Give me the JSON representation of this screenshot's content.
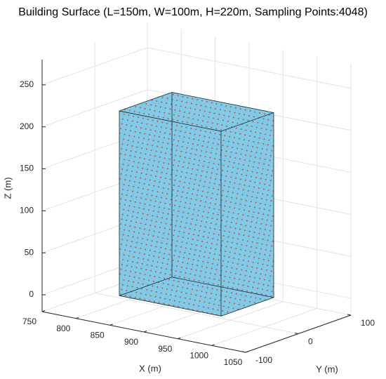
{
  "chart_data": {
    "type": "box3d",
    "title": "Building Surface (L=150m, W=100m, H=220m, Sampling Points:4048)",
    "xlabel": "X (m)",
    "ylabel": "Y (m)",
    "zlabel": "Z (m)",
    "xlim": [
      750,
      1050
    ],
    "xticks": [
      750,
      800,
      850,
      900,
      950,
      1000,
      1050
    ],
    "ylim": [
      -100,
      100
    ],
    "yticks": [
      -100,
      0,
      100
    ],
    "zlim": [
      -20,
      280
    ],
    "zticks": [
      0,
      50,
      100,
      150,
      200,
      250
    ],
    "box": {
      "x": [
        825,
        975
      ],
      "y": [
        -50,
        50
      ],
      "z": [
        0,
        220
      ]
    },
    "color": "#7dcbe6",
    "point_color": "#e0403a",
    "grid": true
  }
}
